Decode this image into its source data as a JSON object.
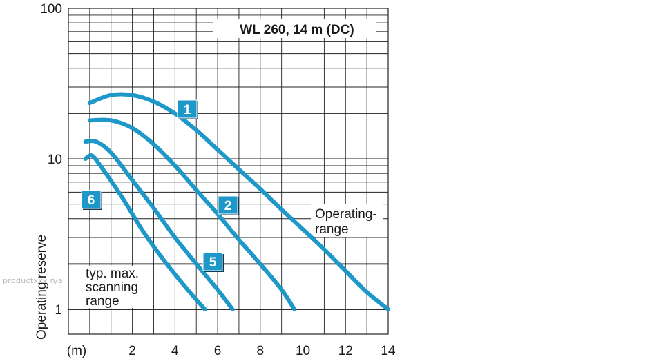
{
  "watermark": "productxxx n/a",
  "chart_data": {
    "type": "line",
    "title": "WL 260, 14 m (DC)",
    "xlabel": "(m)",
    "ylabel": "Operating reserve",
    "x_scale": "linear",
    "y_scale": "log",
    "xlim": [
      -1,
      14
    ],
    "ylim": [
      1,
      100
    ],
    "x_ticks": [
      2,
      4,
      6,
      8,
      10,
      12,
      14
    ],
    "y_ticks": [
      1,
      10,
      100
    ],
    "grid": true,
    "line_color": "#1e97c9",
    "reference_lines": [
      2,
      1
    ],
    "annotations": {
      "operating_range": "Operating-\nrange",
      "scanning_range": "typ. max.\nscanning\nrange"
    },
    "series": [
      {
        "label": "1",
        "x": [
          0,
          1,
          2,
          3,
          4,
          5,
          6,
          7,
          8,
          9,
          10,
          11,
          12,
          13,
          14
        ],
        "y": [
          23.5,
          26.5,
          26.5,
          24,
          20,
          15.5,
          11.5,
          8.5,
          6.3,
          4.6,
          3.4,
          2.5,
          1.8,
          1.3,
          1.0
        ]
      },
      {
        "label": "2",
        "x": [
          0,
          1,
          2,
          3,
          4,
          5,
          6,
          7,
          8,
          9,
          9.6
        ],
        "y": [
          18,
          18,
          16,
          12.5,
          9,
          6.2,
          4.3,
          2.9,
          2.0,
          1.35,
          1.0
        ]
      },
      {
        "label": "5",
        "x": [
          -0.2,
          0.3,
          1,
          2,
          3,
          4,
          5,
          6,
          6.7
        ],
        "y": [
          13,
          13,
          11,
          7.2,
          4.7,
          3.0,
          2.0,
          1.35,
          1.0
        ]
      },
      {
        "label": "6",
        "x": [
          -0.2,
          0.1,
          0.5,
          1.5,
          2.5,
          3.5,
          4.5,
          5.4
        ],
        "y": [
          10,
          10.5,
          9,
          5.6,
          3.3,
          2.1,
          1.4,
          1.0
        ]
      }
    ],
    "label_boxes": [
      "1",
      "2",
      "5",
      "6"
    ]
  }
}
